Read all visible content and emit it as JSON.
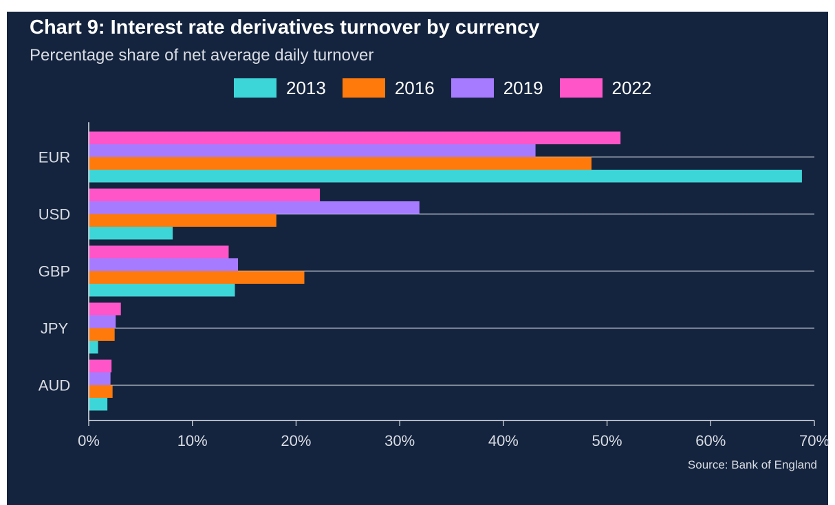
{
  "chart_data": {
    "type": "bar",
    "orientation": "horizontal",
    "title": "Chart 9: Interest rate derivatives turnover by currency",
    "subtitle": "Percentage share of net average daily turnover",
    "categories": [
      "EUR",
      "USD",
      "GBP",
      "JPY",
      "AUD"
    ],
    "series": [
      {
        "name": "2013",
        "color": "#3dd6d8",
        "values": [
          68.8,
          8.1,
          14.1,
          0.9,
          1.8
        ]
      },
      {
        "name": "2016",
        "color": "#ff7a0a",
        "values": [
          48.5,
          18.1,
          20.8,
          2.5,
          2.3
        ]
      },
      {
        "name": "2019",
        "color": "#a77bff",
        "values": [
          43.1,
          31.9,
          14.4,
          2.6,
          2.1
        ]
      },
      {
        "name": "2022",
        "color": "#ff55c8",
        "values": [
          51.3,
          22.3,
          13.5,
          3.1,
          2.2
        ]
      }
    ],
    "xlim": [
      0,
      70
    ],
    "xticks": [
      0,
      10,
      20,
      30,
      40,
      50,
      60,
      70
    ],
    "xtick_labels": [
      "0%",
      "10%",
      "20%",
      "30%",
      "40%",
      "50%",
      "60%",
      "70%"
    ],
    "grid": true,
    "legend_position": "top",
    "source": "Source: Bank of England"
  },
  "colors": {
    "background": "#14243e",
    "text": "#ffffff",
    "axis": "#e6e8ee"
  }
}
